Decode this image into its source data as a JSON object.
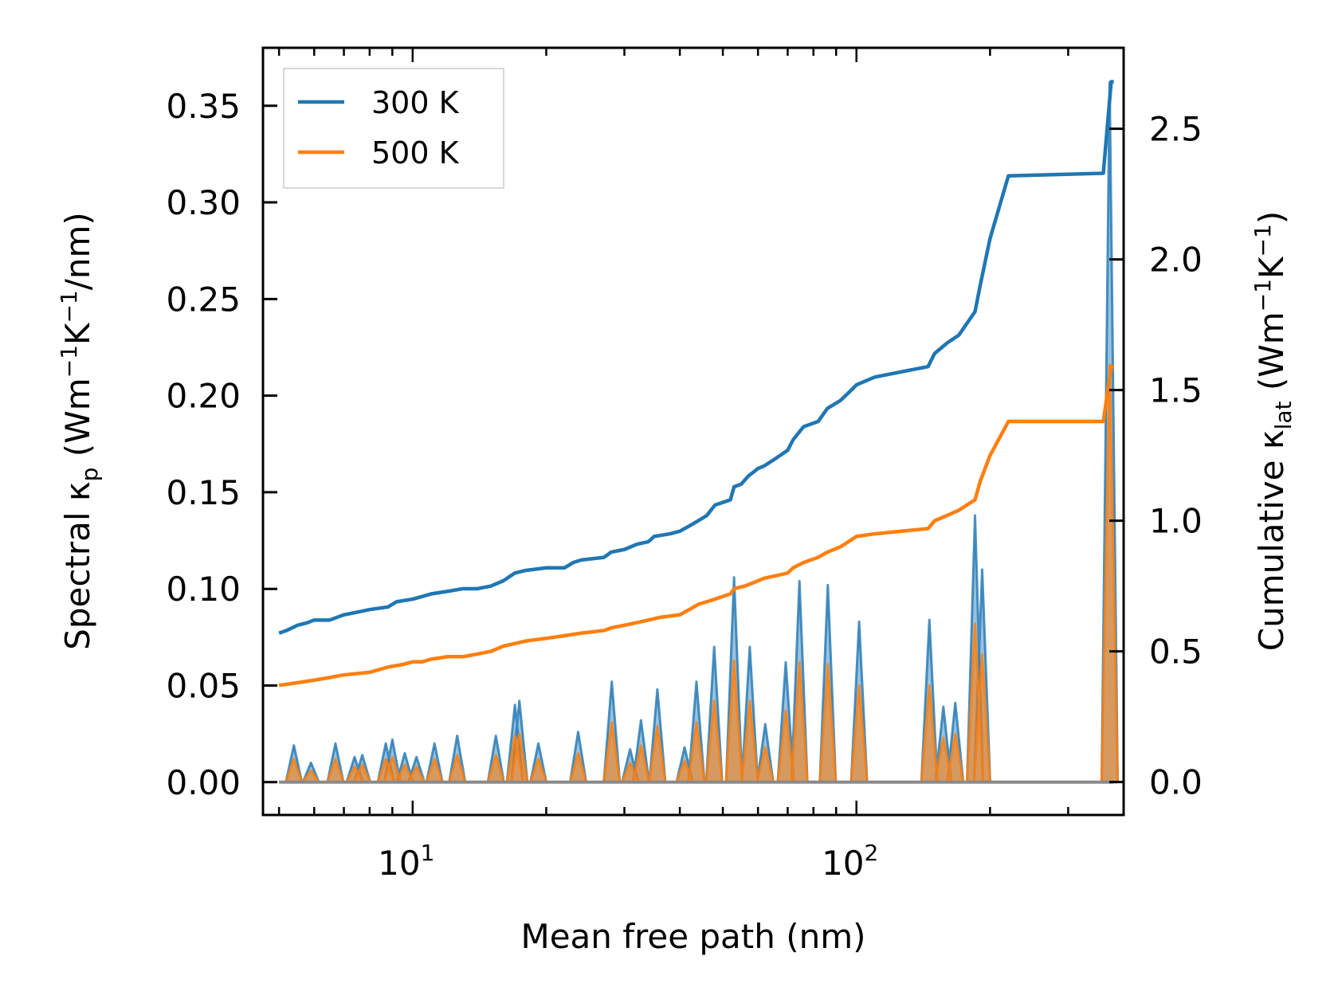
{
  "chart_data": {
    "type": "line",
    "xscale": "log",
    "xlabel": "Mean free path (nm)",
    "xlim": [
      4.6,
      400
    ],
    "x_ticks": [
      {
        "value": 10,
        "base": "10",
        "exp": "1"
      },
      {
        "value": 100,
        "base": "10",
        "exp": "2"
      }
    ],
    "y_left": {
      "label_main": "Spectral κ",
      "label_sub": "p",
      "label_unit_a": " (Wm",
      "label_sup_a": "−1",
      "label_unit_b": "K",
      "label_sup_b": "−1",
      "label_unit_c": "/nm)",
      "ylim": [
        -0.017,
        0.38
      ],
      "ticks": [
        "0.00",
        "0.05",
        "0.10",
        "0.15",
        "0.20",
        "0.25",
        "0.30",
        "0.35"
      ],
      "tick_values": [
        0,
        0.05,
        0.1,
        0.15,
        0.2,
        0.25,
        0.3,
        0.35
      ]
    },
    "y_right": {
      "label_main": "Cumulative κ",
      "label_sub": "lat",
      "label_unit_a": " (Wm",
      "label_sup_a": "−1",
      "label_unit_b": "K",
      "label_sup_b": "−1",
      "label_unit_c": ")",
      "ylim": [
        -0.126,
        2.81
      ],
      "ticks": [
        "0.0",
        "0.5",
        "1.0",
        "1.5",
        "2.0",
        "2.5"
      ],
      "tick_values": [
        0,
        0.5,
        1.0,
        1.5,
        2.0,
        2.5
      ]
    },
    "legend": {
      "position": "upper-left",
      "entries": [
        "300 K",
        "500 K"
      ]
    },
    "colors": {
      "300K": "#1f77b4",
      "500K": "#ff7f0e",
      "fill300": "#1f77b4",
      "fill500": "#ff7f0e"
    },
    "series": [
      {
        "name": "300 K",
        "kind": "cumulative",
        "axis": "right",
        "points": [
          [
            5,
            0.57
          ],
          [
            5.2,
            0.58
          ],
          [
            5.5,
            0.6
          ],
          [
            5.8,
            0.61
          ],
          [
            6.0,
            0.62
          ],
          [
            6.5,
            0.62
          ],
          [
            7.0,
            0.64
          ],
          [
            7.5,
            0.65
          ],
          [
            8.0,
            0.66
          ],
          [
            8.8,
            0.67
          ],
          [
            9.2,
            0.69
          ],
          [
            10,
            0.7
          ],
          [
            10.5,
            0.71
          ],
          [
            11,
            0.72
          ],
          [
            12,
            0.73
          ],
          [
            13,
            0.74
          ],
          [
            14,
            0.74
          ],
          [
            15,
            0.75
          ],
          [
            16,
            0.77
          ],
          [
            17,
            0.8
          ],
          [
            18,
            0.81
          ],
          [
            20,
            0.82
          ],
          [
            22,
            0.82
          ],
          [
            23,
            0.84
          ],
          [
            24,
            0.85
          ],
          [
            27,
            0.86
          ],
          [
            28,
            0.88
          ],
          [
            30,
            0.89
          ],
          [
            32,
            0.91
          ],
          [
            34,
            0.92
          ],
          [
            35,
            0.94
          ],
          [
            38,
            0.95
          ],
          [
            40,
            0.96
          ],
          [
            42,
            0.98
          ],
          [
            44,
            1.0
          ],
          [
            46,
            1.02
          ],
          [
            48,
            1.06
          ],
          [
            52,
            1.08
          ],
          [
            53,
            1.13
          ],
          [
            55,
            1.14
          ],
          [
            57,
            1.17
          ],
          [
            60,
            1.2
          ],
          [
            62,
            1.21
          ],
          [
            66,
            1.24
          ],
          [
            70,
            1.27
          ],
          [
            72,
            1.31
          ],
          [
            76,
            1.36
          ],
          [
            82,
            1.38
          ],
          [
            86,
            1.43
          ],
          [
            92,
            1.46
          ],
          [
            96,
            1.49
          ],
          [
            100,
            1.52
          ],
          [
            110,
            1.55
          ],
          [
            145,
            1.59
          ],
          [
            150,
            1.64
          ],
          [
            160,
            1.68
          ],
          [
            170,
            1.71
          ],
          [
            185,
            1.8
          ],
          [
            190,
            1.9
          ],
          [
            200,
            2.08
          ],
          [
            220,
            2.32
          ],
          [
            360,
            2.33
          ],
          [
            375,
            2.68
          ],
          [
            380,
            2.68
          ]
        ]
      },
      {
        "name": "500 K",
        "kind": "cumulative",
        "axis": "right",
        "points": [
          [
            5,
            0.37
          ],
          [
            5.5,
            0.38
          ],
          [
            6,
            0.39
          ],
          [
            6.5,
            0.4
          ],
          [
            7,
            0.41
          ],
          [
            8,
            0.42
          ],
          [
            8.8,
            0.44
          ],
          [
            9.5,
            0.45
          ],
          [
            10,
            0.46
          ],
          [
            10.5,
            0.46
          ],
          [
            11,
            0.47
          ],
          [
            12,
            0.48
          ],
          [
            13,
            0.48
          ],
          [
            14,
            0.49
          ],
          [
            15,
            0.5
          ],
          [
            16,
            0.52
          ],
          [
            17,
            0.53
          ],
          [
            18,
            0.54
          ],
          [
            20,
            0.55
          ],
          [
            22,
            0.56
          ],
          [
            24,
            0.57
          ],
          [
            27,
            0.58
          ],
          [
            28,
            0.59
          ],
          [
            30,
            0.6
          ],
          [
            32,
            0.61
          ],
          [
            34,
            0.62
          ],
          [
            36,
            0.63
          ],
          [
            40,
            0.64
          ],
          [
            42,
            0.66
          ],
          [
            44,
            0.68
          ],
          [
            46,
            0.69
          ],
          [
            48,
            0.7
          ],
          [
            52,
            0.72
          ],
          [
            53,
            0.74
          ],
          [
            56,
            0.75
          ],
          [
            58,
            0.76
          ],
          [
            62,
            0.78
          ],
          [
            66,
            0.79
          ],
          [
            70,
            0.8
          ],
          [
            72,
            0.82
          ],
          [
            76,
            0.84
          ],
          [
            82,
            0.86
          ],
          [
            86,
            0.88
          ],
          [
            92,
            0.9
          ],
          [
            96,
            0.92
          ],
          [
            100,
            0.94
          ],
          [
            110,
            0.95
          ],
          [
            145,
            0.97
          ],
          [
            150,
            1.0
          ],
          [
            160,
            1.02
          ],
          [
            170,
            1.04
          ],
          [
            185,
            1.08
          ],
          [
            190,
            1.15
          ],
          [
            200,
            1.25
          ],
          [
            220,
            1.38
          ],
          [
            360,
            1.38
          ],
          [
            375,
            1.59
          ],
          [
            380,
            1.59
          ]
        ]
      },
      {
        "name": "300 K spectral",
        "kind": "spectral",
        "axis": "left",
        "peaks": [
          [
            5.4,
            0.019
          ],
          [
            5.9,
            0.01
          ],
          [
            6.7,
            0.02
          ],
          [
            7.4,
            0.013
          ],
          [
            7.7,
            0.014
          ],
          [
            8.7,
            0.02
          ],
          [
            9.0,
            0.022
          ],
          [
            9.6,
            0.015
          ],
          [
            10.2,
            0.013
          ],
          [
            11.2,
            0.02
          ],
          [
            12.6,
            0.024
          ],
          [
            15.4,
            0.024
          ],
          [
            17.0,
            0.04
          ],
          [
            17.4,
            0.042
          ],
          [
            19.2,
            0.02
          ],
          [
            23.6,
            0.026
          ],
          [
            28.1,
            0.052
          ],
          [
            30.9,
            0.017
          ],
          [
            32.7,
            0.032
          ],
          [
            35.6,
            0.048
          ],
          [
            41.0,
            0.018
          ],
          [
            43.6,
            0.052
          ],
          [
            47.8,
            0.07
          ],
          [
            53.0,
            0.106
          ],
          [
            57.5,
            0.07
          ],
          [
            62.3,
            0.03
          ],
          [
            69.3,
            0.062
          ],
          [
            74.4,
            0.104
          ],
          [
            86.2,
            0.102
          ],
          [
            101.4,
            0.083
          ],
          [
            146,
            0.084
          ],
          [
            157,
            0.039
          ],
          [
            167,
            0.041
          ],
          [
            185,
            0.138
          ],
          [
            192,
            0.11
          ],
          [
            372,
            0.362
          ]
        ]
      },
      {
        "name": "500 K spectral",
        "kind": "spectral",
        "axis": "left",
        "peaks": [
          [
            5.4,
            0.012
          ],
          [
            5.9,
            0.006
          ],
          [
            6.7,
            0.012
          ],
          [
            7.4,
            0.008
          ],
          [
            7.7,
            0.009
          ],
          [
            8.7,
            0.012
          ],
          [
            9.0,
            0.013
          ],
          [
            9.6,
            0.009
          ],
          [
            10.2,
            0.008
          ],
          [
            11.2,
            0.012
          ],
          [
            12.6,
            0.014
          ],
          [
            15.4,
            0.014
          ],
          [
            17.0,
            0.024
          ],
          [
            17.4,
            0.025
          ],
          [
            19.2,
            0.012
          ],
          [
            23.6,
            0.015
          ],
          [
            28.1,
            0.031
          ],
          [
            30.9,
            0.01
          ],
          [
            32.7,
            0.019
          ],
          [
            35.6,
            0.029
          ],
          [
            41.0,
            0.011
          ],
          [
            43.6,
            0.031
          ],
          [
            47.8,
            0.042
          ],
          [
            53.0,
            0.063
          ],
          [
            57.5,
            0.042
          ],
          [
            62.3,
            0.018
          ],
          [
            69.3,
            0.037
          ],
          [
            74.4,
            0.062
          ],
          [
            86.2,
            0.061
          ],
          [
            101.4,
            0.05
          ],
          [
            146,
            0.05
          ],
          [
            157,
            0.023
          ],
          [
            167,
            0.025
          ],
          [
            185,
            0.082
          ],
          [
            192,
            0.066
          ],
          [
            372,
            0.216
          ]
        ]
      }
    ]
  }
}
